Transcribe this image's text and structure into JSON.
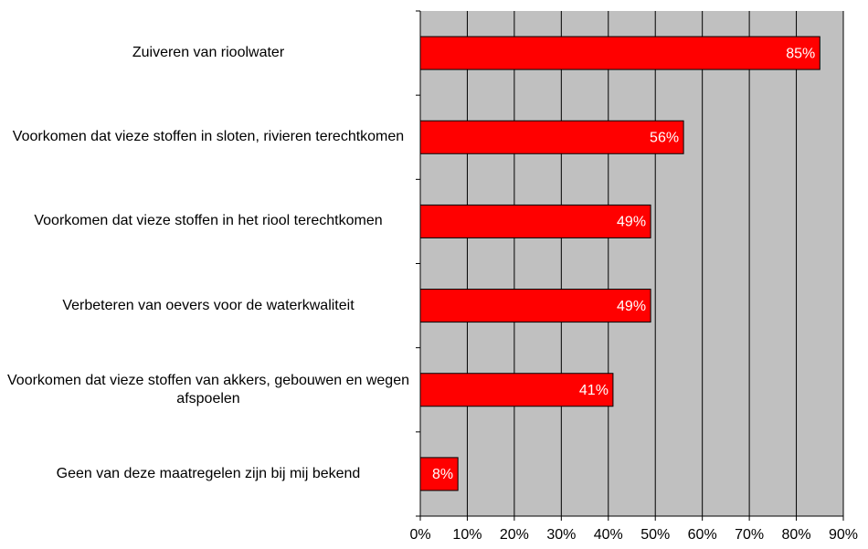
{
  "chart_data": {
    "type": "bar",
    "orientation": "horizontal",
    "categories": [
      "Zuiveren van rioolwater",
      "Voorkomen dat vieze stoffen in sloten, rivieren terechtkomen",
      "Voorkomen dat vieze stoffen in het riool terechtkomen",
      "Verbeteren van oevers voor de waterkwaliteit",
      "Voorkomen dat vieze stoffen van akkers, gebouwen en wegen afspoelen",
      "Geen van deze maatregelen zijn bij mij bekend"
    ],
    "values": [
      85,
      56,
      49,
      49,
      41,
      8
    ],
    "value_labels": [
      "85%",
      "56%",
      "49%",
      "49%",
      "41%",
      "8%"
    ],
    "color": "#ff0000",
    "xlim": [
      0,
      90
    ],
    "xticks": [
      {
        "value": 0,
        "label": "0%"
      },
      {
        "value": 10,
        "label": "10%"
      },
      {
        "value": 20,
        "label": "20%"
      },
      {
        "value": 30,
        "label": "30%"
      },
      {
        "value": 40,
        "label": "40%"
      },
      {
        "value": 50,
        "label": "50%"
      },
      {
        "value": 60,
        "label": "60%"
      },
      {
        "value": 70,
        "label": "70%"
      },
      {
        "value": 80,
        "label": "80%"
      },
      {
        "value": 90,
        "label": "90%"
      }
    ],
    "grid": true
  }
}
